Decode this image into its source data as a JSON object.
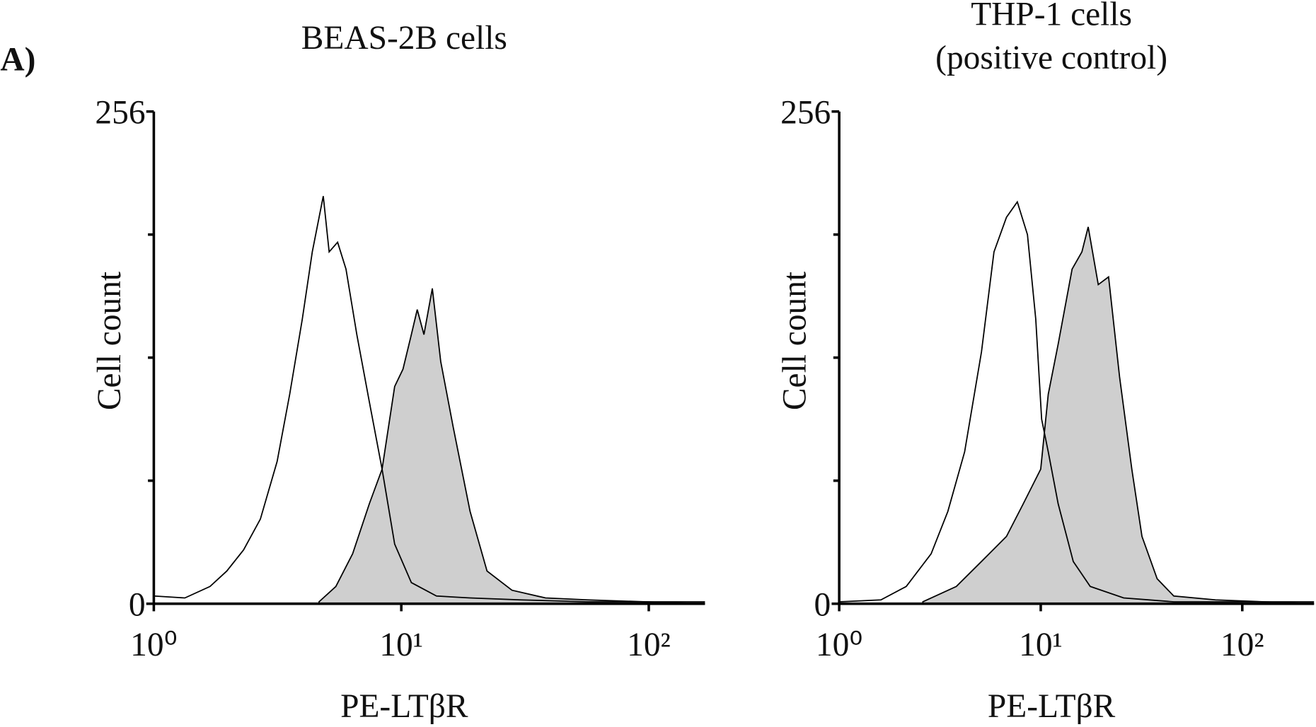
{
  "panel_label": "A)",
  "chart_data": [
    {
      "type": "histogram",
      "title": "BEAS-2B cells",
      "x_label": "PE-LTβR",
      "y_label": "Cell count",
      "x_scale": "log",
      "xlim": [
        1,
        168.7
      ],
      "xticks": [
        {
          "value": 1,
          "label": "10⁰"
        },
        {
          "value": 10,
          "label": "10¹"
        },
        {
          "value": 100,
          "label": "10²"
        }
      ],
      "ylim": [
        0,
        256
      ],
      "yticks": [
        0,
        256
      ],
      "minor_yticks": [
        64,
        128,
        192
      ],
      "series": [
        {
          "color": "#cfcfcf",
          "filled": true,
          "x": [
            4.65,
            5.44,
            6.36,
            7.43,
            8.36,
            9.4,
            10.16,
            10.98,
            11.6,
            12.35,
            13.35,
            14.43,
            16.2,
            18.97,
            22.2,
            28.0,
            38.3,
            56.6,
            97.7,
            168.7
          ],
          "values": [
            1,
            9,
            26,
            52,
            70,
            113,
            122,
            140,
            153,
            140,
            164,
            126,
            92,
            48,
            17,
            7,
            3,
            2,
            1,
            0
          ]
        },
        {
          "color": "#000000",
          "filled": false,
          "x": [
            1,
            1.335,
            1.687,
            1.972,
            2.305,
            2.695,
            3.15,
            3.54,
            3.98,
            4.37,
            4.84,
            5.11,
            5.53,
            5.98,
            6.61,
            7.43,
            8.36,
            9.4,
            10.98,
            13.87,
            18.97,
            30.3,
            56.6,
            168.7
          ],
          "values": [
            4,
            3,
            9,
            17,
            28,
            44,
            74,
            109,
            148,
            183,
            212,
            183,
            188,
            174,
            140,
            105,
            70,
            31,
            11,
            4,
            3,
            2,
            1,
            1
          ]
        }
      ]
    },
    {
      "type": "histogram",
      "title": "THP-1 cells",
      "subtitle": "(positive control)",
      "x_label": "PE-LTβR",
      "y_label": "Cell count",
      "x_scale": "log",
      "xlim": [
        1,
        227
      ],
      "xticks": [
        {
          "value": 1,
          "label": "10⁰"
        },
        {
          "value": 10,
          "label": "10¹"
        },
        {
          "value": 100,
          "label": "10²"
        }
      ],
      "ylim": [
        0,
        256
      ],
      "yticks": [
        0,
        256
      ],
      "minor_yticks": [
        64,
        128,
        192
      ],
      "series": [
        {
          "color": "#cfcfcf",
          "filled": true,
          "x": [
            2.6,
            3.81,
            5.08,
            6.76,
            8.19,
            10,
            10.9,
            12.2,
            14.3,
            16.0,
            17.2,
            19.3,
            21.7,
            24.6,
            28.3,
            31.8,
            37.8,
            45.7,
            73.6,
            227
          ],
          "values": [
            1,
            9,
            22,
            35,
            52,
            70,
            109,
            135,
            174,
            183,
            196,
            166,
            170,
            118,
            70,
            35,
            13,
            4,
            2,
            0
          ]
        },
        {
          "color": "#000000",
          "filled": false,
          "x": [
            1,
            1.61,
            2.15,
            2.86,
            3.46,
            4.19,
            5.08,
            5.86,
            6.76,
            7.65,
            8.59,
            9.45,
            10.1,
            10.9,
            12.2,
            14.5,
            17.6,
            25.8,
            45.7,
            227
          ],
          "values": [
            1,
            2,
            9,
            26,
            48,
            79,
            131,
            183,
            201,
            209,
            192,
            148,
            96,
            79,
            52,
            22,
            9,
            3,
            1,
            1
          ]
        }
      ]
    }
  ]
}
